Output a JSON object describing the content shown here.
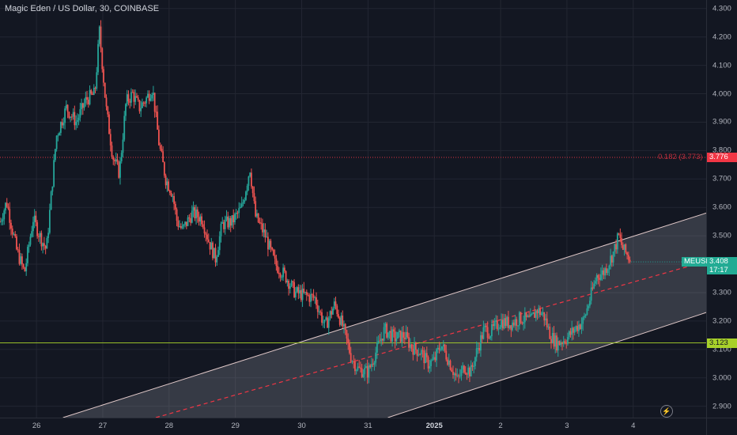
{
  "chart_data": {
    "type": "candlestick",
    "title": "Magic Eden / US Dollar, 30, COINBASE",
    "symbol": "MEUSD",
    "ylim": [
      2.86,
      4.33
    ],
    "yticks": [
      "4.300",
      "4.200",
      "4.100",
      "4.000",
      "3.900",
      "3.800",
      "3.700",
      "3.600",
      "3.500",
      "3.400",
      "3.300",
      "3.200",
      "3.100",
      "3.000",
      "2.900"
    ],
    "xticks": [
      {
        "t": 26.0,
        "label": "26"
      },
      {
        "t": 27.0,
        "label": "27"
      },
      {
        "t": 28.0,
        "label": "28"
      },
      {
        "t": 29.0,
        "label": "29"
      },
      {
        "t": 30.0,
        "label": "30"
      },
      {
        "t": 31.0,
        "label": "31"
      },
      {
        "t": 32.0,
        "label": "2025",
        "bold": true
      },
      {
        "t": 33.0,
        "label": "2"
      },
      {
        "t": 34.0,
        "label": "3"
      },
      {
        "t": 35.0,
        "label": "4"
      }
    ],
    "xlim": [
      25.45,
      36.1
    ],
    "price_path": [
      [
        25.45,
        3.55
      ],
      [
        25.55,
        3.62
      ],
      [
        25.7,
        3.45
      ],
      [
        25.82,
        3.37
      ],
      [
        25.95,
        3.56
      ],
      [
        26.05,
        3.5
      ],
      [
        26.15,
        3.45
      ],
      [
        26.3,
        3.85
      ],
      [
        26.45,
        3.95
      ],
      [
        26.6,
        3.9
      ],
      [
        26.75,
        3.98
      ],
      [
        26.88,
        4.0
      ],
      [
        26.95,
        4.22
      ],
      [
        27.05,
        3.95
      ],
      [
        27.15,
        3.78
      ],
      [
        27.25,
        3.72
      ],
      [
        27.35,
        3.97
      ],
      [
        27.45,
        4.0
      ],
      [
        27.55,
        3.95
      ],
      [
        27.65,
        3.98
      ],
      [
        27.75,
        4.02
      ],
      [
        27.85,
        3.82
      ],
      [
        27.95,
        3.7
      ],
      [
        28.05,
        3.65
      ],
      [
        28.12,
        3.55
      ],
      [
        28.2,
        3.52
      ],
      [
        28.35,
        3.58
      ],
      [
        28.5,
        3.56
      ],
      [
        28.6,
        3.48
      ],
      [
        28.7,
        3.42
      ],
      [
        28.8,
        3.54
      ],
      [
        28.95,
        3.55
      ],
      [
        29.1,
        3.6
      ],
      [
        29.22,
        3.74
      ],
      [
        29.3,
        3.57
      ],
      [
        29.45,
        3.5
      ],
      [
        29.6,
        3.4
      ],
      [
        29.75,
        3.36
      ],
      [
        29.9,
        3.3
      ],
      [
        30.05,
        3.29
      ],
      [
        30.2,
        3.28
      ],
      [
        30.35,
        3.18
      ],
      [
        30.5,
        3.26
      ],
      [
        30.62,
        3.18
      ],
      [
        30.75,
        3.07
      ],
      [
        30.85,
        3.03
      ],
      [
        31.0,
        3.02
      ],
      [
        31.1,
        3.08
      ],
      [
        31.25,
        3.17
      ],
      [
        31.4,
        3.14
      ],
      [
        31.55,
        3.15
      ],
      [
        31.65,
        3.11
      ],
      [
        31.8,
        3.09
      ],
      [
        31.9,
        3.05
      ],
      [
        32.0,
        3.06
      ],
      [
        32.1,
        3.12
      ],
      [
        32.22,
        3.06
      ],
      [
        32.35,
        2.99
      ],
      [
        32.45,
        3.04
      ],
      [
        32.55,
        3.02
      ],
      [
        32.65,
        3.1
      ],
      [
        32.75,
        3.17
      ],
      [
        32.85,
        3.16
      ],
      [
        33.0,
        3.2
      ],
      [
        33.15,
        3.19
      ],
      [
        33.3,
        3.21
      ],
      [
        33.45,
        3.2
      ],
      [
        33.55,
        3.24
      ],
      [
        33.65,
        3.22
      ],
      [
        33.75,
        3.15
      ],
      [
        33.85,
        3.12
      ],
      [
        34.0,
        3.14
      ],
      [
        34.15,
        3.18
      ],
      [
        34.25,
        3.2
      ],
      [
        34.35,
        3.28
      ],
      [
        34.45,
        3.36
      ],
      [
        34.55,
        3.37
      ],
      [
        34.62,
        3.4
      ],
      [
        34.7,
        3.44
      ],
      [
        34.78,
        3.5
      ],
      [
        34.85,
        3.45
      ],
      [
        34.92,
        3.43
      ],
      [
        34.97,
        3.41
      ]
    ],
    "horizontal_levels": [
      {
        "value": 3.776,
        "label": "0.182 (3.773)",
        "color": "#f23645",
        "style": "dotted",
        "tag": "3.776"
      },
      {
        "value": 3.123,
        "color": "#a8d12a",
        "style": "solid",
        "tag": "3.123"
      }
    ],
    "channel": {
      "upper": [
        [
          26.4,
          2.86
        ],
        [
          36.1,
          3.58
        ]
      ],
      "lower": [
        [
          31.3,
          2.86
        ],
        [
          36.1,
          3.23
        ]
      ],
      "mid": [
        [
          27.8,
          2.86
        ],
        [
          36.1,
          3.41
        ]
      ],
      "fill": "#9598a1",
      "line_color": "#e0c8c8",
      "mid_color": "#f23645"
    },
    "last_price": {
      "value": 3.408,
      "label": "MEUSD",
      "tag": "3.408",
      "countdown": "17:17"
    },
    "colors": {
      "up": "#26a69a",
      "down": "#ef5350",
      "grid": "#232632",
      "background": "#131722"
    }
  },
  "ui": {
    "axis_icon": "lightning-icon"
  }
}
